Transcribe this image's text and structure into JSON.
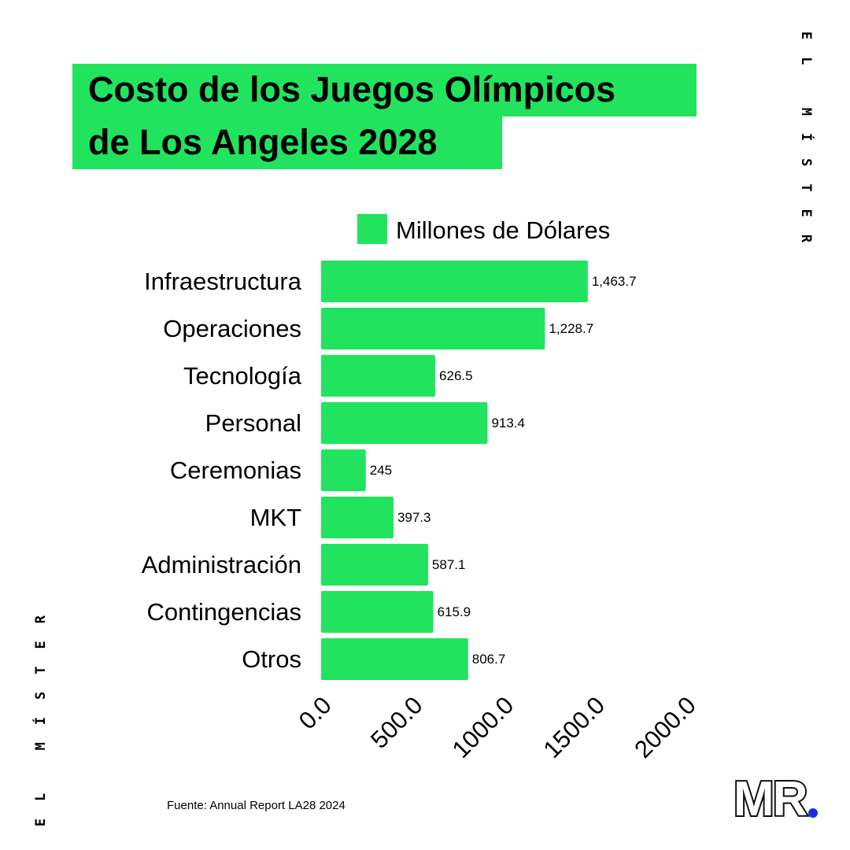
{
  "title": {
    "line1": "Costo de los Juegos Olímpicos",
    "line2": "de Los Angeles 2028"
  },
  "brand": {
    "side_text": "EL MÍSTER",
    "logo_text": "MR",
    "logo_dot_color": "#1a2fe0"
  },
  "source": "Fuente: Annual Report LA28 2024",
  "colors": {
    "bar": "#22e35e",
    "text": "#000000"
  },
  "chart_data": {
    "type": "bar",
    "orientation": "horizontal",
    "categories": [
      "Infraestructura",
      "Operaciones",
      "Tecnología",
      "Personal",
      "Ceremonias",
      "MKT",
      "Administración",
      "Contingencias",
      "Otros"
    ],
    "series": [
      {
        "name": "Millones de Dólares",
        "values": [
          1463.7,
          1228.7,
          626.5,
          913.4,
          245,
          397.3,
          587.1,
          615.9,
          806.7
        ],
        "labels": [
          "1,463.7",
          "1,228.7",
          "626.5",
          "913.4",
          "245",
          "397.3",
          "587.1",
          "615.9",
          "806.7"
        ]
      }
    ],
    "xticks": [
      "0.0",
      "500.0",
      "1000.0",
      "1500.0",
      "2000.0"
    ],
    "xlim": [
      0,
      2000
    ],
    "legend": "top",
    "grid": false
  }
}
